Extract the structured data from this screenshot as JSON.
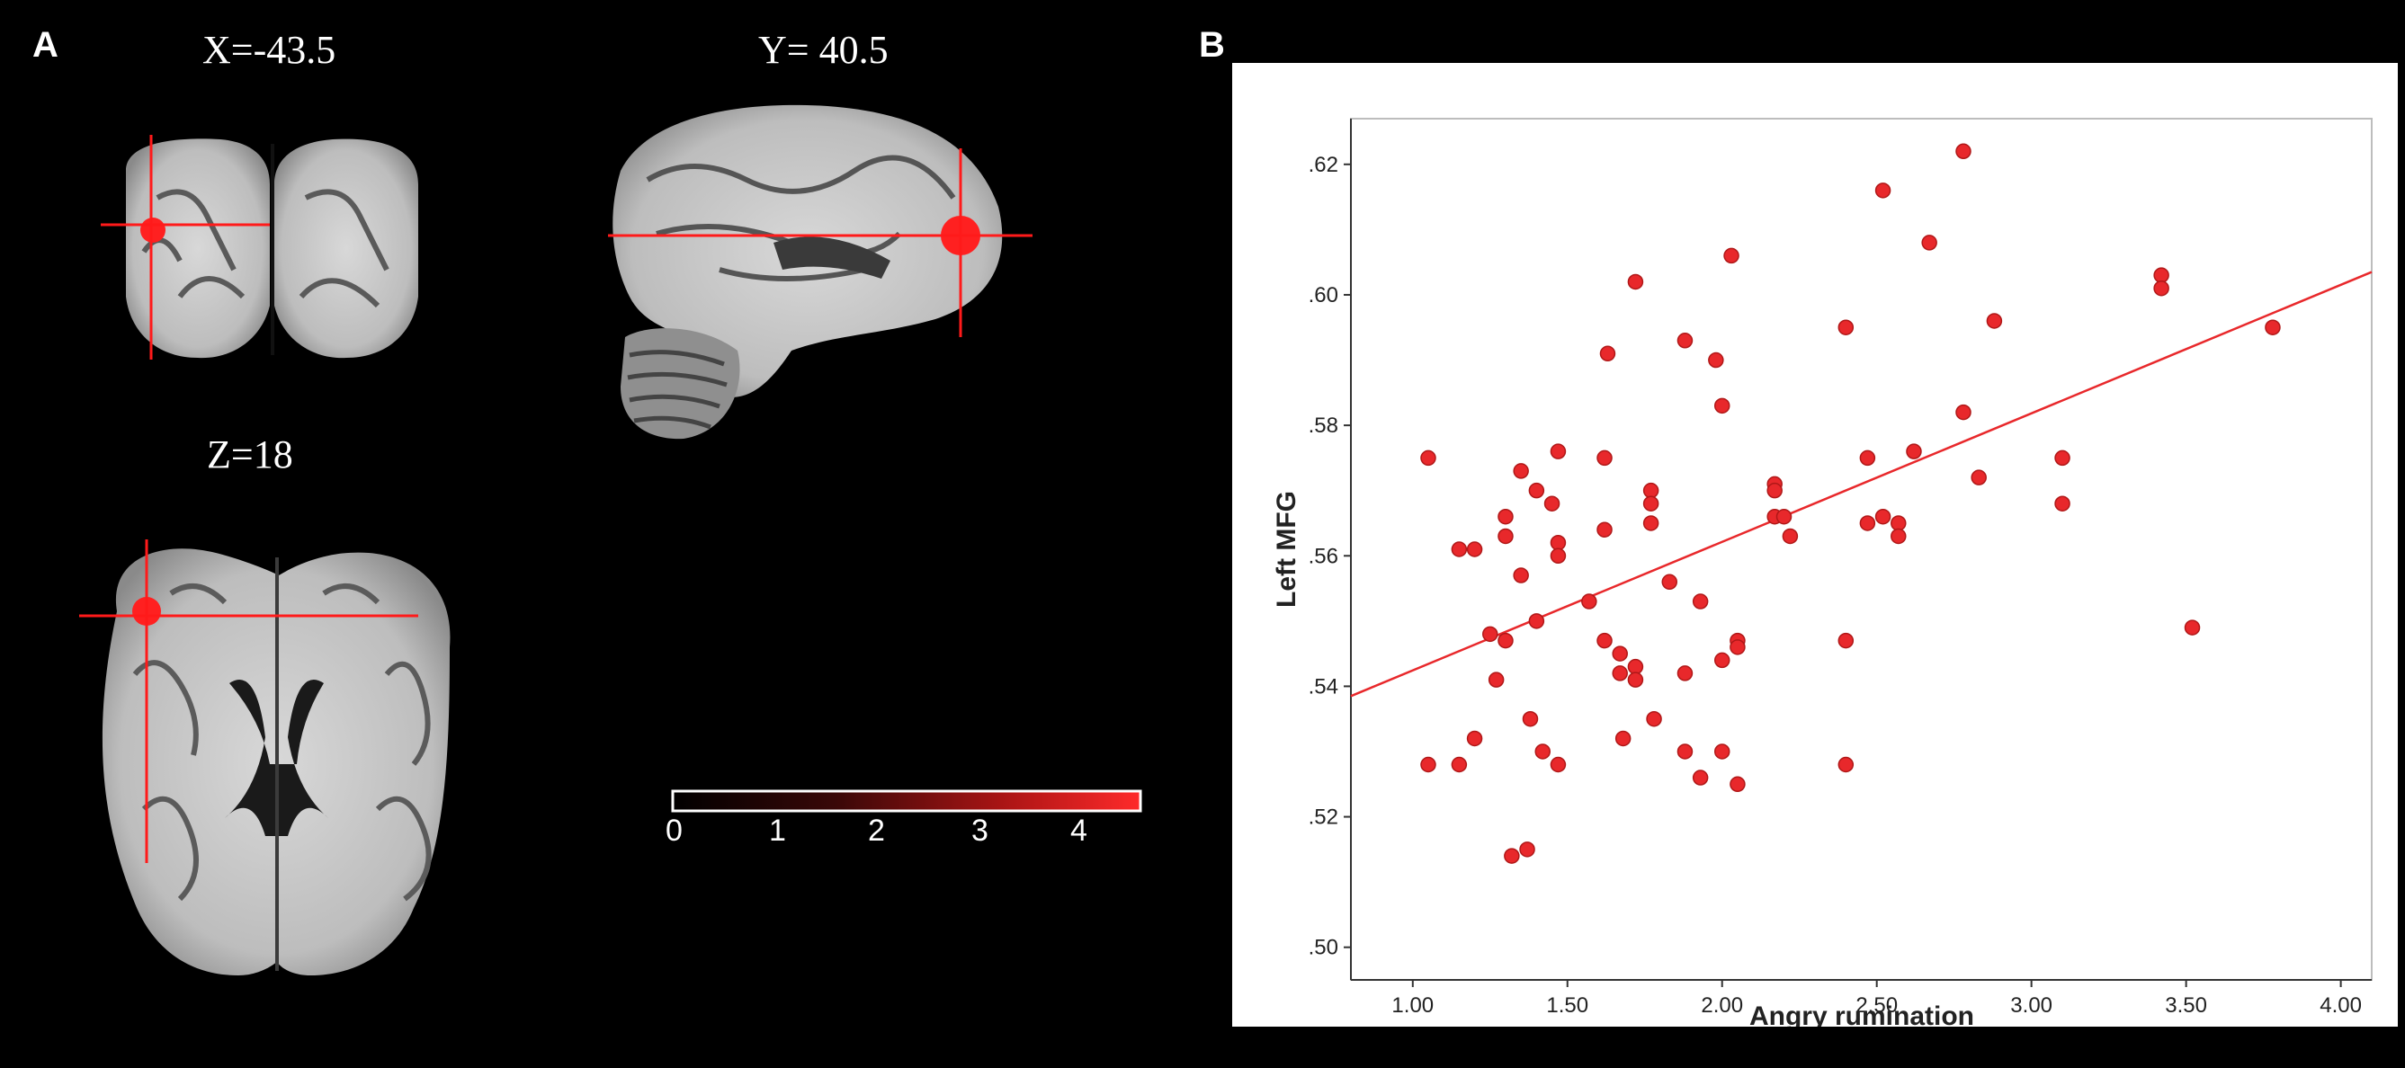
{
  "panels": {
    "a_label": "A",
    "b_label": "B"
  },
  "brain": {
    "coronal_label": "X=-43.5",
    "sagittal_label": "Y= 40.5",
    "axial_label": "Z=18",
    "colorbar": {
      "ticks": [
        "0",
        "1",
        "2",
        "3",
        "4"
      ],
      "color_low": "#ffffff",
      "color_high": "#ff2020"
    },
    "crosshair_color": "#ff1a1a"
  },
  "chart_data": {
    "type": "scatter",
    "xlabel": "Angry rumination",
    "ylabel": "Left MFG",
    "xlim": [
      0.8,
      4.1
    ],
    "ylim": [
      0.495,
      0.627
    ],
    "xticks": [
      "1.00",
      "1.50",
      "2.00",
      "2.50",
      "3.00",
      "3.50",
      "4.00"
    ],
    "xtick_values": [
      1.0,
      1.5,
      2.0,
      2.5,
      3.0,
      3.5,
      4.0
    ],
    "yticks": [
      ".50",
      ".52",
      ".54",
      ".56",
      ".58",
      ".60",
      ".62"
    ],
    "ytick_values": [
      0.5,
      0.52,
      0.54,
      0.56,
      0.58,
      0.6,
      0.62
    ],
    "grid": false,
    "point_color": "#e8282b",
    "fit_line": {
      "x": [
        0.8,
        4.1
      ],
      "y": [
        0.5385,
        0.6035
      ]
    },
    "points": [
      [
        1.05,
        0.575
      ],
      [
        1.05,
        0.528
      ],
      [
        1.15,
        0.561
      ],
      [
        1.15,
        0.528
      ],
      [
        1.2,
        0.561
      ],
      [
        1.2,
        0.532
      ],
      [
        1.25,
        0.548
      ],
      [
        1.27,
        0.541
      ],
      [
        1.3,
        0.566
      ],
      [
        1.3,
        0.563
      ],
      [
        1.3,
        0.547
      ],
      [
        1.32,
        0.514
      ],
      [
        1.35,
        0.573
      ],
      [
        1.35,
        0.557
      ],
      [
        1.37,
        0.515
      ],
      [
        1.38,
        0.535
      ],
      [
        1.4,
        0.57
      ],
      [
        1.4,
        0.55
      ],
      [
        1.42,
        0.53
      ],
      [
        1.45,
        0.568
      ],
      [
        1.47,
        0.576
      ],
      [
        1.47,
        0.562
      ],
      [
        1.47,
        0.56
      ],
      [
        1.47,
        0.528
      ],
      [
        1.57,
        0.553
      ],
      [
        1.62,
        0.575
      ],
      [
        1.62,
        0.564
      ],
      [
        1.62,
        0.547
      ],
      [
        1.63,
        0.591
      ],
      [
        1.67,
        0.545
      ],
      [
        1.67,
        0.542
      ],
      [
        1.68,
        0.532
      ],
      [
        1.72,
        0.602
      ],
      [
        1.72,
        0.543
      ],
      [
        1.72,
        0.541
      ],
      [
        1.77,
        0.57
      ],
      [
        1.77,
        0.568
      ],
      [
        1.77,
        0.565
      ],
      [
        1.78,
        0.535
      ],
      [
        1.83,
        0.556
      ],
      [
        1.88,
        0.593
      ],
      [
        1.88,
        0.542
      ],
      [
        1.88,
        0.53
      ],
      [
        1.93,
        0.553
      ],
      [
        1.93,
        0.526
      ],
      [
        1.98,
        0.59
      ],
      [
        2.0,
        0.583
      ],
      [
        2.0,
        0.544
      ],
      [
        2.0,
        0.53
      ],
      [
        2.03,
        0.606
      ],
      [
        2.05,
        0.547
      ],
      [
        2.05,
        0.546
      ],
      [
        2.05,
        0.525
      ],
      [
        2.17,
        0.571
      ],
      [
        2.17,
        0.57
      ],
      [
        2.17,
        0.566
      ],
      [
        2.2,
        0.566
      ],
      [
        2.22,
        0.563
      ],
      [
        2.4,
        0.595
      ],
      [
        2.4,
        0.547
      ],
      [
        2.4,
        0.528
      ],
      [
        2.47,
        0.575
      ],
      [
        2.47,
        0.565
      ],
      [
        2.52,
        0.616
      ],
      [
        2.52,
        0.566
      ],
      [
        2.57,
        0.565
      ],
      [
        2.57,
        0.563
      ],
      [
        2.62,
        0.576
      ],
      [
        2.67,
        0.608
      ],
      [
        2.78,
        0.622
      ],
      [
        2.78,
        0.582
      ],
      [
        2.83,
        0.572
      ],
      [
        2.88,
        0.596
      ],
      [
        3.1,
        0.575
      ],
      [
        3.1,
        0.568
      ],
      [
        3.42,
        0.603
      ],
      [
        3.42,
        0.601
      ],
      [
        3.52,
        0.549
      ],
      [
        3.78,
        0.595
      ]
    ]
  }
}
